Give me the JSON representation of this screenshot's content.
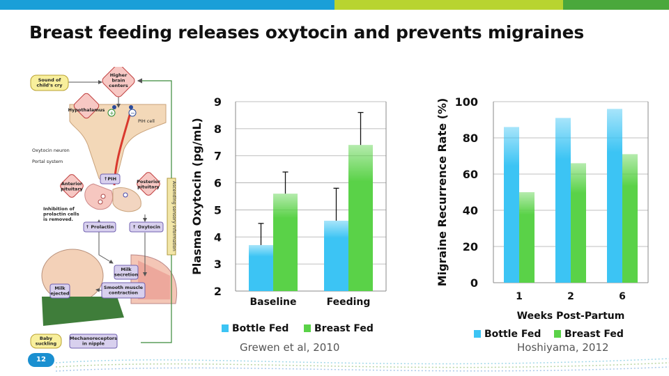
{
  "slide": {
    "title": "Breast feeding releases oxytocin and prevents migraines",
    "page_number": "12",
    "colors": {
      "bar_blue": "#1a9fd8",
      "bar_lime": "#b8d430",
      "bar_green": "#4aa83c",
      "bottle": "#3cc4f4",
      "breast": "#5ad248"
    }
  },
  "diagram": {
    "labels": {
      "sound": "Sound of\nchild's cry",
      "brain": "Higher\nbrain\ncenters",
      "hypothalamus": "Hypothalamus",
      "pih_cell": "PIH cell",
      "oxytocin_neuron": "Oxytocin neuron",
      "portal": "Portal system",
      "anterior": "Anterior\npituitary",
      "posterior": "Posterior\npituitary",
      "pih": "↑PIH",
      "ascending": "Ascending sensory information",
      "inhibition": "Inhibition of\nprolactin cells\nis removed.",
      "prolactin": "↑ Prolactin",
      "oxytocin": "↑ Oxytocin",
      "milk_secretion": "Milk\nsecretion",
      "milk_ejected": "Milk\nejected",
      "smooth": "Smooth muscle\ncontraction",
      "baby": "Baby\nsuckling",
      "mechano": "Mechanoreceptors\nin nipple",
      "plus": "+",
      "minus": "−"
    }
  },
  "chart_data": [
    {
      "type": "bar",
      "ylabel": "Plasma Oxytocin (pg/mL)",
      "xlabel": "",
      "categories": [
        "Baseline",
        "Feeding"
      ],
      "ylim": [
        2,
        9
      ],
      "yticks": [
        2,
        3,
        4,
        5,
        6,
        7,
        8,
        9
      ],
      "grid": true,
      "legend_position": "bottom",
      "series": [
        {
          "name": "Bottle Fed",
          "values": [
            3.7,
            4.6
          ],
          "error": [
            0.8,
            1.2
          ],
          "color": "bottle"
        },
        {
          "name": "Breast Fed",
          "values": [
            5.6,
            7.4
          ],
          "error": [
            0.8,
            1.2
          ],
          "color": "breast"
        }
      ],
      "source": "Grewen et al, 2010"
    },
    {
      "type": "bar",
      "ylabel": "Migraine Recurrence Rate (%)",
      "xlabel": "Weeks Post-Partum",
      "categories": [
        "1",
        "2",
        "6"
      ],
      "ylim": [
        0,
        100
      ],
      "yticks": [
        0,
        20,
        40,
        60,
        80,
        100
      ],
      "grid": true,
      "legend_position": "bottom",
      "series": [
        {
          "name": "Bottle Fed",
          "values": [
            86,
            91,
            96
          ],
          "color": "bottle"
        },
        {
          "name": "Breast Fed",
          "values": [
            50,
            66,
            71
          ],
          "color": "breast"
        }
      ],
      "source": "Hoshiyama, 2012"
    }
  ]
}
